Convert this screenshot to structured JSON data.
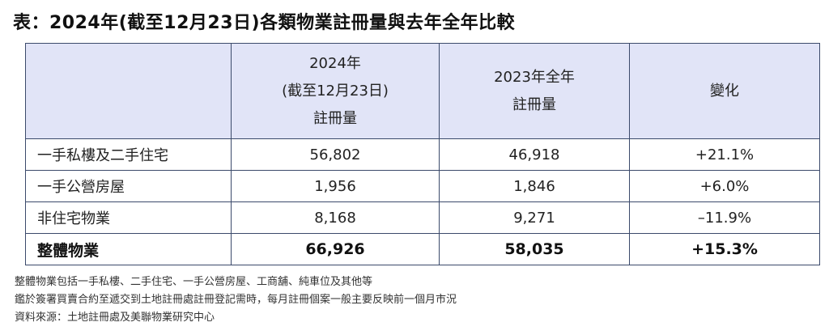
{
  "title": "表：2024年(截至12月23日)各類物業註冊量與去年全年比較",
  "table": {
    "header": {
      "col0": "",
      "col1_lines": [
        "2024年",
        "(截至12月23日)",
        "註冊量"
      ],
      "col2_lines": [
        "2023年全年",
        "註冊量"
      ],
      "col3": "變化"
    },
    "rows": [
      {
        "label": "一手私樓及二手住宅",
        "y2024": "56,802",
        "y2023": "46,918",
        "change": "+21.1%"
      },
      {
        "label": "一手公營房屋",
        "y2024": "1,956",
        "y2023": "1,846",
        "change": "+6.0%"
      },
      {
        "label": "非住宅物業",
        "y2024": "8,168",
        "y2023": "9,271",
        "change": "–11.9%"
      },
      {
        "label": "整體物業",
        "y2024": "66,926",
        "y2023": "58,035",
        "change": "+15.3%"
      }
    ]
  },
  "notes": [
    "整體物業包括一手私樓、二手住宅、一手公營房屋、工商舖、純車位及其他等",
    "鑑於簽署買賣合約至遞交到土地註冊處註冊登記需時，每月註冊個案一般主要反映前一個月市況",
    "資料來源：土地註冊處及美聯物業研究中心"
  ]
}
